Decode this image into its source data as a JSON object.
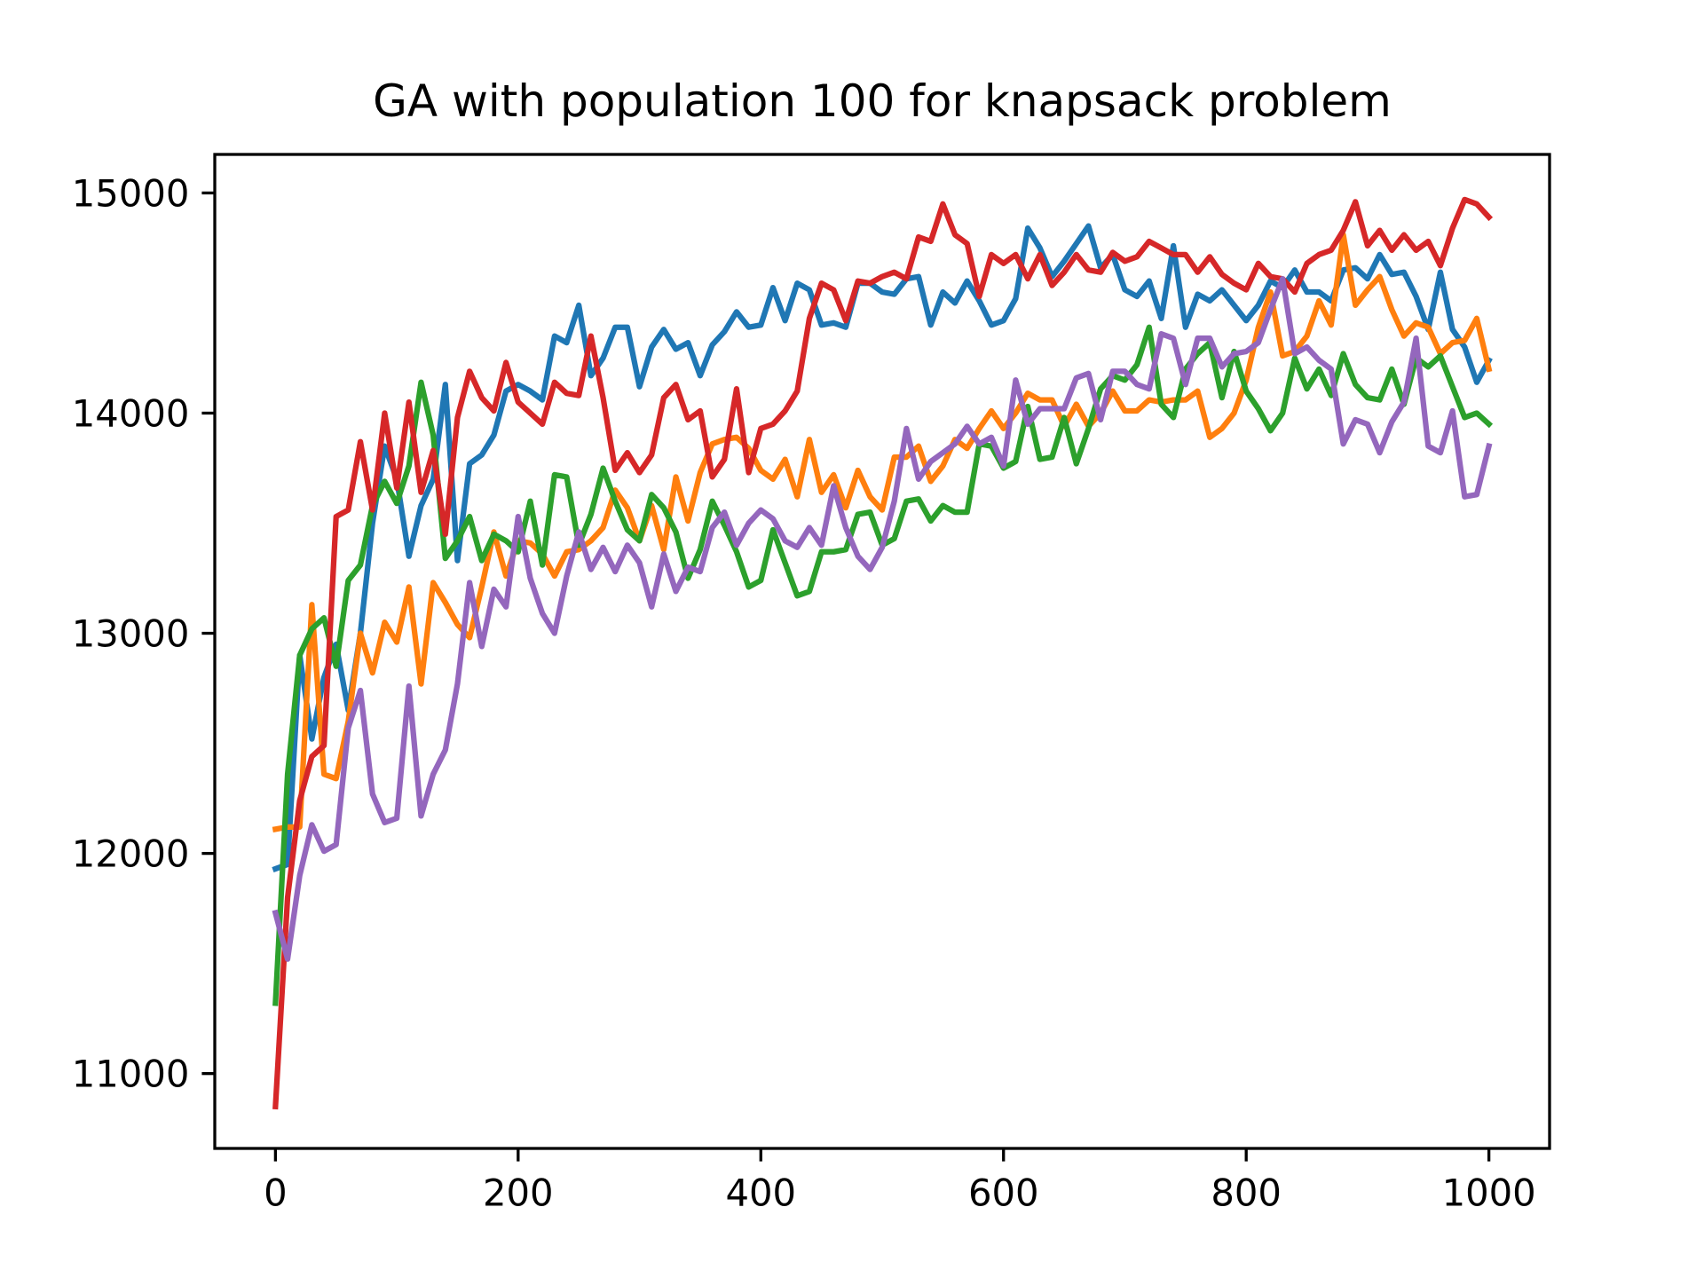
{
  "chart_data": {
    "type": "line",
    "title": "GA with population 100 for knapsack problem",
    "x": [
      0,
      10,
      20,
      30,
      40,
      50,
      60,
      70,
      80,
      90,
      100,
      110,
      120,
      130,
      140,
      150,
      160,
      170,
      180,
      190,
      200,
      210,
      220,
      230,
      240,
      250,
      260,
      270,
      280,
      290,
      300,
      310,
      320,
      330,
      340,
      350,
      360,
      370,
      380,
      390,
      400,
      410,
      420,
      430,
      440,
      450,
      460,
      470,
      480,
      490,
      500,
      510,
      520,
      530,
      540,
      550,
      560,
      570,
      580,
      590,
      600,
      610,
      620,
      630,
      640,
      650,
      660,
      670,
      680,
      690,
      700,
      710,
      720,
      730,
      740,
      750,
      760,
      770,
      780,
      790,
      800,
      810,
      820,
      830,
      840,
      850,
      860,
      870,
      880,
      890,
      900,
      910,
      920,
      930,
      940,
      950,
      960,
      970,
      980,
      990,
      1000
    ],
    "series": [
      {
        "color": "#1f77b4",
        "values": [
          11930,
          11950,
          12900,
          12520,
          12800,
          12950,
          12650,
          13000,
          13500,
          13850,
          13700,
          13350,
          13580,
          13700,
          14130,
          13330,
          13770,
          13810,
          13900,
          14100,
          14130,
          14100,
          14060,
          14350,
          14320,
          14490,
          14170,
          14250,
          14390,
          14390,
          14120,
          14300,
          14380,
          14290,
          14320,
          14170,
          14310,
          14370,
          14460,
          14390,
          14400,
          14570,
          14420,
          14590,
          14560,
          14400,
          14410,
          14390,
          14590,
          14590,
          14550,
          14540,
          14610,
          14620,
          14400,
          14550,
          14500,
          14600,
          14510,
          14400,
          14420,
          14520,
          14840,
          14750,
          14620,
          14690,
          14770,
          14850,
          14660,
          14720,
          14560,
          14530,
          14600,
          14430,
          14760,
          14390,
          14540,
          14510,
          14560,
          14490,
          14420,
          14490,
          14600,
          14570,
          14650,
          14550,
          14550,
          14510,
          14650,
          14660,
          14610,
          14720,
          14630,
          14640,
          14530,
          14380,
          14640,
          14380,
          14300,
          14140,
          14240
        ]
      },
      {
        "color": "#ff7f0e",
        "values": [
          12110,
          12120,
          12120,
          13130,
          12360,
          12340,
          12600,
          13000,
          12820,
          13050,
          12960,
          13210,
          12770,
          13230,
          13140,
          13040,
          12980,
          13210,
          13460,
          13260,
          13420,
          13410,
          13360,
          13260,
          13370,
          13380,
          13420,
          13480,
          13650,
          13570,
          13420,
          13580,
          13380,
          13710,
          13510,
          13730,
          13860,
          13880,
          13890,
          13840,
          13740,
          13700,
          13790,
          13620,
          13880,
          13640,
          13720,
          13570,
          13740,
          13620,
          13560,
          13800,
          13800,
          13850,
          13690,
          13760,
          13880,
          13840,
          13930,
          14010,
          13930,
          14000,
          14090,
          14060,
          14060,
          13940,
          14040,
          13940,
          14000,
          14100,
          14010,
          14010,
          14060,
          14050,
          14060,
          14060,
          14100,
          13890,
          13930,
          14000,
          14150,
          14390,
          14550,
          14260,
          14280,
          14350,
          14510,
          14400,
          14810,
          14490,
          14560,
          14620,
          14470,
          14350,
          14410,
          14390,
          14270,
          14320,
          14330,
          14430,
          14200
        ]
      },
      {
        "color": "#2ca02c",
        "values": [
          11320,
          12360,
          12900,
          13020,
          13070,
          12850,
          13240,
          13310,
          13580,
          13690,
          13590,
          13760,
          14140,
          13900,
          13340,
          13420,
          13530,
          13330,
          13450,
          13420,
          13370,
          13600,
          13310,
          13720,
          13710,
          13400,
          13540,
          13750,
          13600,
          13470,
          13420,
          13630,
          13570,
          13460,
          13250,
          13380,
          13600,
          13490,
          13370,
          13210,
          13240,
          13470,
          13320,
          13170,
          13190,
          13370,
          13370,
          13380,
          13540,
          13550,
          13400,
          13430,
          13600,
          13610,
          13510,
          13580,
          13550,
          13550,
          13860,
          13850,
          13750,
          13780,
          14030,
          13790,
          13800,
          13980,
          13770,
          13930,
          14110,
          14170,
          14150,
          14220,
          14390,
          14040,
          13980,
          14200,
          14270,
          14320,
          14070,
          14280,
          14100,
          14020,
          13920,
          14000,
          14250,
          14110,
          14200,
          14080,
          14270,
          14130,
          14070,
          14060,
          14200,
          14040,
          14250,
          14210,
          14260,
          14120,
          13980,
          14000,
          13950
        ]
      },
      {
        "color": "#d62728",
        "values": [
          10850,
          11800,
          12240,
          12440,
          12490,
          13530,
          13560,
          13870,
          13560,
          14000,
          13660,
          14050,
          13640,
          13830,
          13450,
          13980,
          14190,
          14070,
          14010,
          14230,
          14050,
          14000,
          13950,
          14140,
          14090,
          14080,
          14350,
          14070,
          13740,
          13820,
          13730,
          13810,
          14070,
          14130,
          13970,
          14010,
          13710,
          13790,
          14110,
          13730,
          13930,
          13950,
          14010,
          14100,
          14430,
          14590,
          14560,
          14420,
          14600,
          14590,
          14620,
          14640,
          14610,
          14800,
          14780,
          14950,
          14810,
          14770,
          14530,
          14720,
          14680,
          14720,
          14610,
          14720,
          14580,
          14640,
          14720,
          14650,
          14640,
          14730,
          14690,
          14710,
          14780,
          14750,
          14720,
          14720,
          14640,
          14710,
          14630,
          14590,
          14560,
          14680,
          14620,
          14610,
          14550,
          14680,
          14720,
          14740,
          14830,
          14960,
          14760,
          14830,
          14740,
          14810,
          14740,
          14780,
          14670,
          14840,
          14970,
          14950,
          14890
        ]
      },
      {
        "color": "#9467bd",
        "values": [
          11730,
          11520,
          11900,
          12130,
          12010,
          12040,
          12570,
          12740,
          12270,
          12140,
          12160,
          12760,
          12170,
          12360,
          12470,
          12770,
          13230,
          12940,
          13200,
          13120,
          13530,
          13250,
          13090,
          13000,
          13260,
          13460,
          13290,
          13390,
          13280,
          13400,
          13320,
          13120,
          13360,
          13190,
          13300,
          13280,
          13480,
          13550,
          13400,
          13500,
          13560,
          13520,
          13420,
          13390,
          13480,
          13400,
          13670,
          13480,
          13350,
          13290,
          13390,
          13600,
          13930,
          13700,
          13780,
          13820,
          13860,
          13940,
          13860,
          13890,
          13760,
          14150,
          13950,
          14020,
          14020,
          14020,
          14160,
          14180,
          13970,
          14190,
          14190,
          14130,
          14110,
          14360,
          14340,
          14130,
          14340,
          14340,
          14210,
          14270,
          14280,
          14320,
          14470,
          14610,
          14270,
          14300,
          14240,
          14200,
          13860,
          13970,
          13950,
          13820,
          13960,
          14050,
          14340,
          13850,
          13820,
          14010,
          13620,
          13630,
          13850
        ]
      }
    ],
    "xlim": [
      -50,
      1050
    ],
    "ylim": [
      10660,
      15175
    ],
    "xticks": [
      0,
      200,
      400,
      600,
      800,
      1000
    ],
    "yticks": [
      11000,
      12000,
      13000,
      14000,
      15000
    ],
    "grid": false
  }
}
